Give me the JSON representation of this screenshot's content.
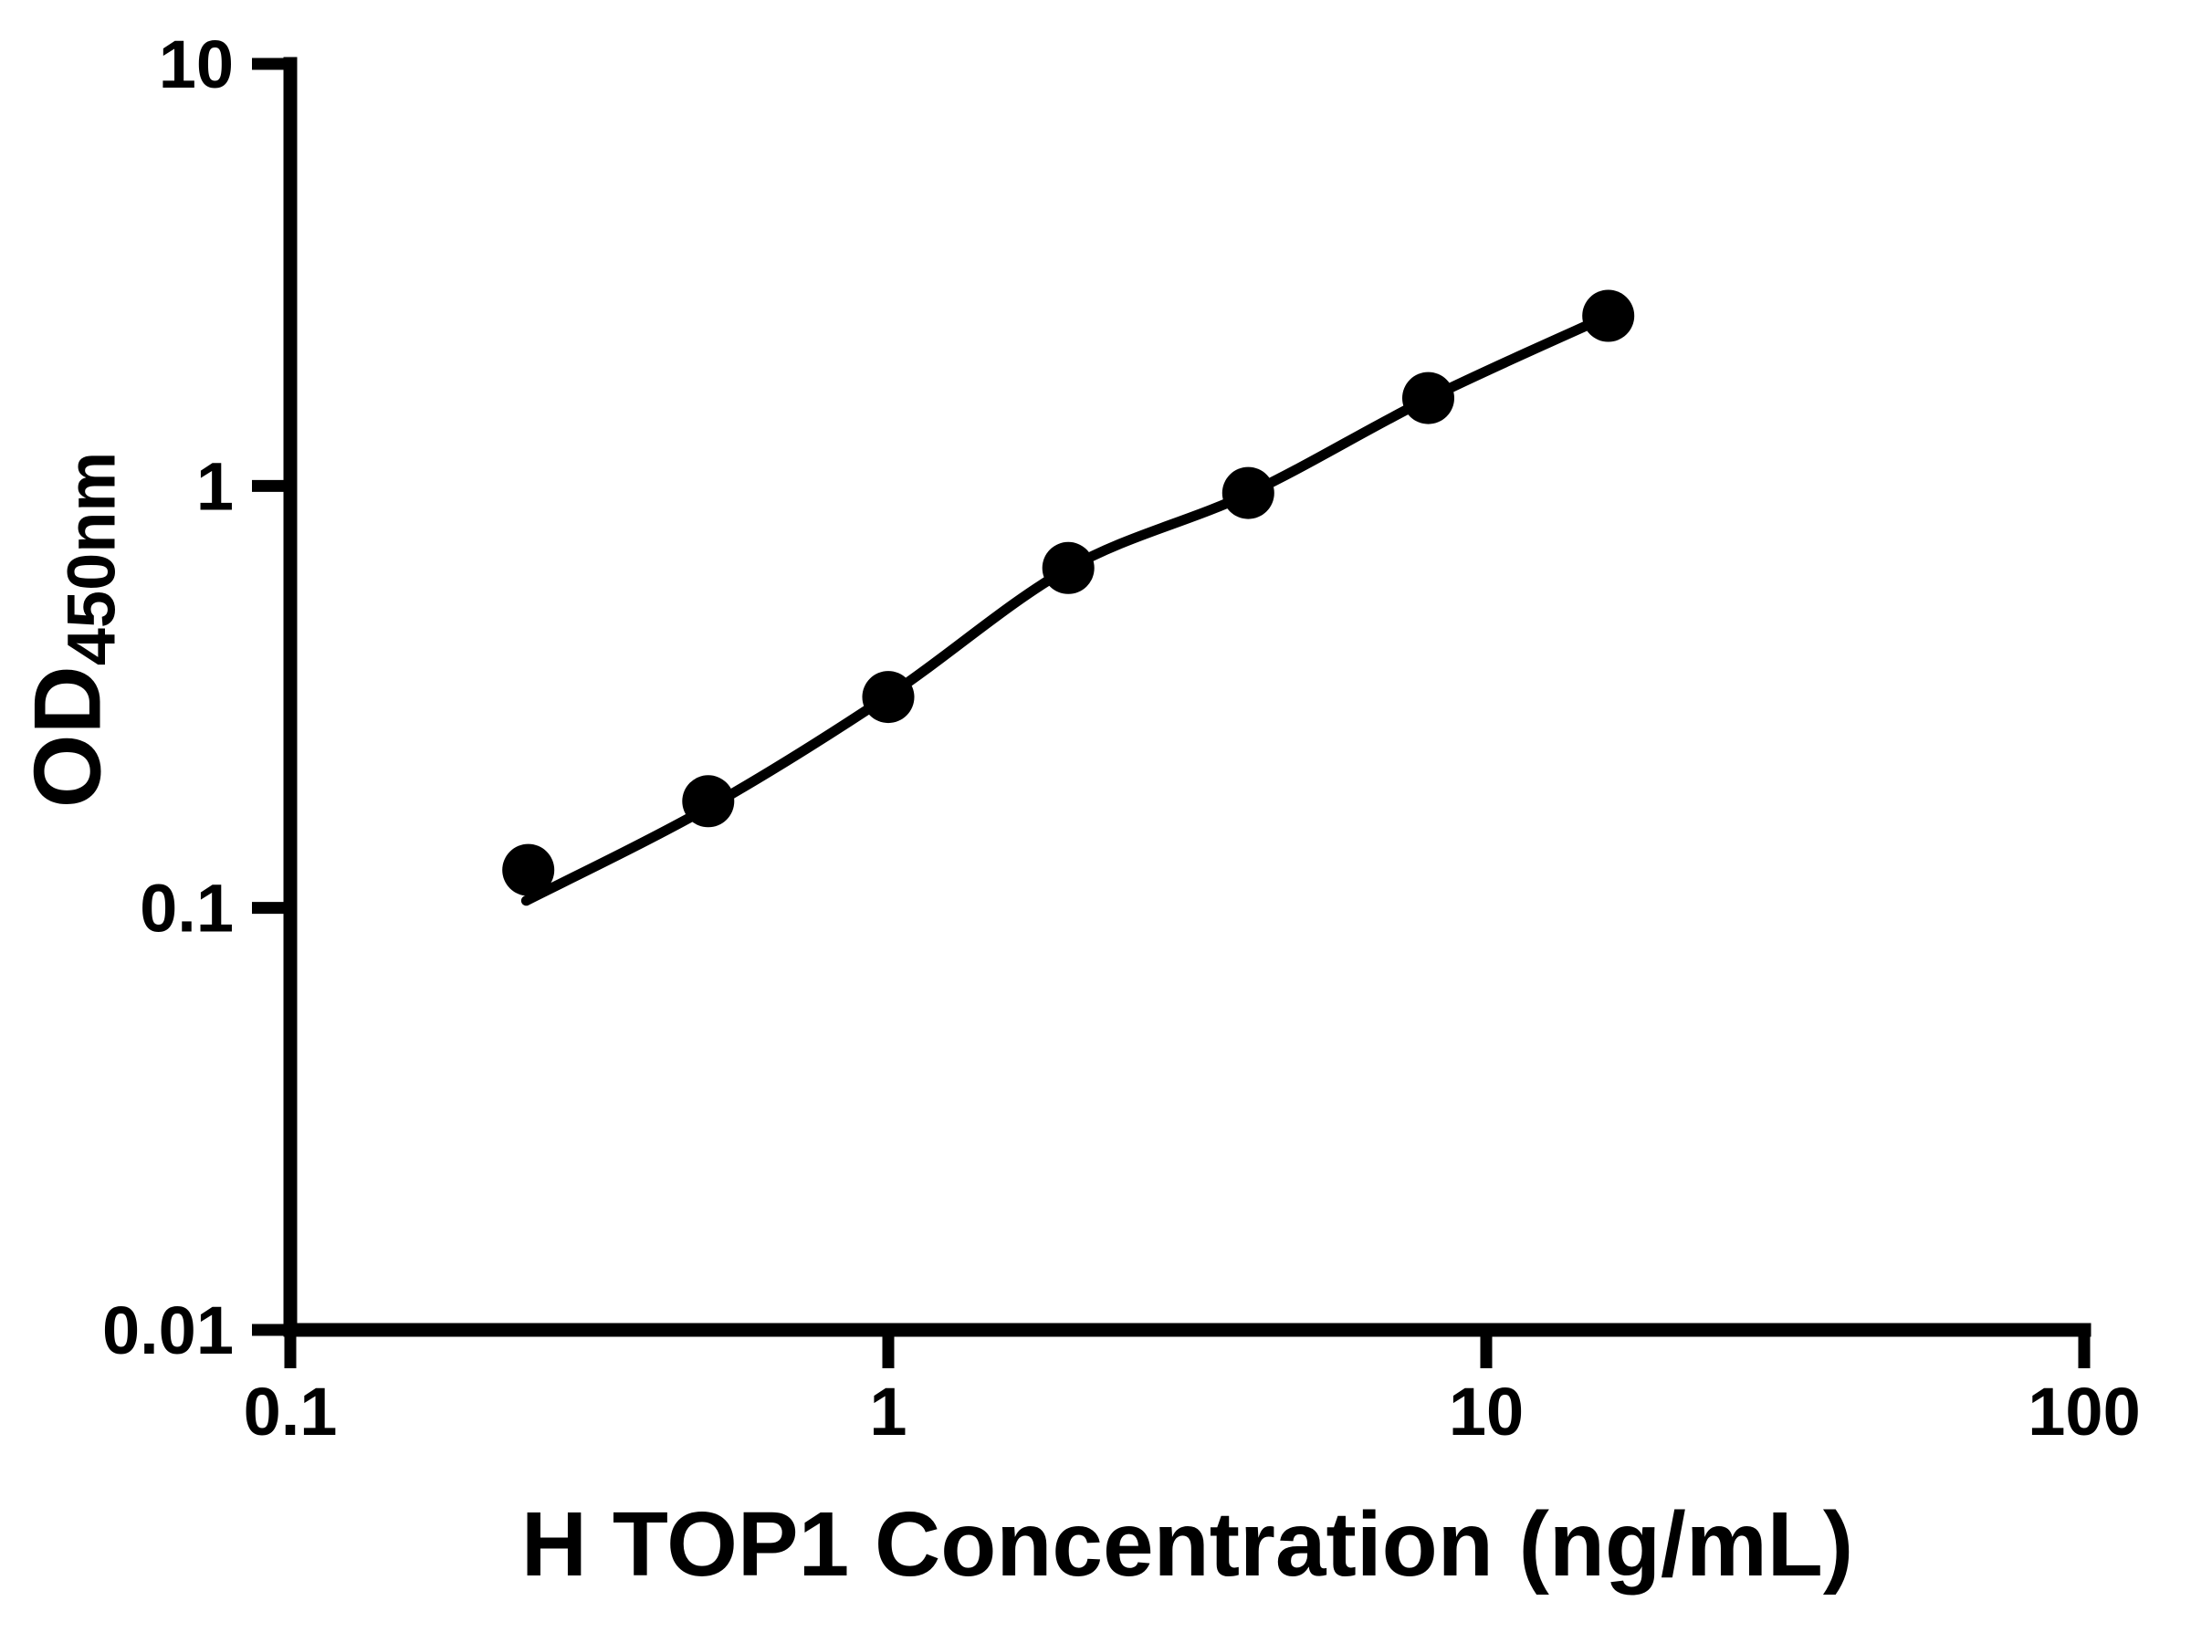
{
  "chart_data": {
    "type": "scatter",
    "title": "",
    "xlabel": "H TOP1 Concentration (ng/mL)",
    "ylabel": "OD450nm",
    "ylabel_main": "OD",
    "ylabel_sub": "450nm",
    "x_scale": "log",
    "y_scale": "log",
    "xlim": [
      0.1,
      100
    ],
    "ylim": [
      0.01,
      10
    ],
    "grid": false,
    "legend_position": "none",
    "axis_color": "#000000",
    "marker_color": "#000000",
    "line_color": "#000000",
    "background_color": "#ffffff",
    "x_ticks": [
      {
        "value": 0.1,
        "label": "0.1"
      },
      {
        "value": 1,
        "label": "1"
      },
      {
        "value": 10,
        "label": "10"
      },
      {
        "value": 100,
        "label": "100"
      }
    ],
    "y_ticks": [
      {
        "value": 10,
        "label": "10"
      },
      {
        "value": 1,
        "label": "1"
      },
      {
        "value": 0.1,
        "label": "0.1"
      },
      {
        "value": 0.01,
        "label": "0.01"
      }
    ],
    "series": [
      {
        "name": "standard-curve-points",
        "marker": "filled-circle",
        "points": [
          {
            "x": 0.25,
            "y": 0.123
          },
          {
            "x": 0.5,
            "y": 0.179
          },
          {
            "x": 1,
            "y": 0.316
          },
          {
            "x": 2,
            "y": 0.639
          },
          {
            "x": 4,
            "y": 0.962
          },
          {
            "x": 8,
            "y": 1.615
          },
          {
            "x": 16,
            "y": 2.53
          }
        ]
      }
    ],
    "trend_line": {
      "name": "fitted-standard-curve",
      "points": [
        {
          "x": 0.248,
          "y": 0.104
        },
        {
          "x": 0.5,
          "y": 0.173
        },
        {
          "x": 1,
          "y": 0.318
        },
        {
          "x": 2,
          "y": 0.637
        },
        {
          "x": 4,
          "y": 0.958
        },
        {
          "x": 8,
          "y": 1.61
        },
        {
          "x": 16,
          "y": 2.53
        }
      ]
    }
  }
}
